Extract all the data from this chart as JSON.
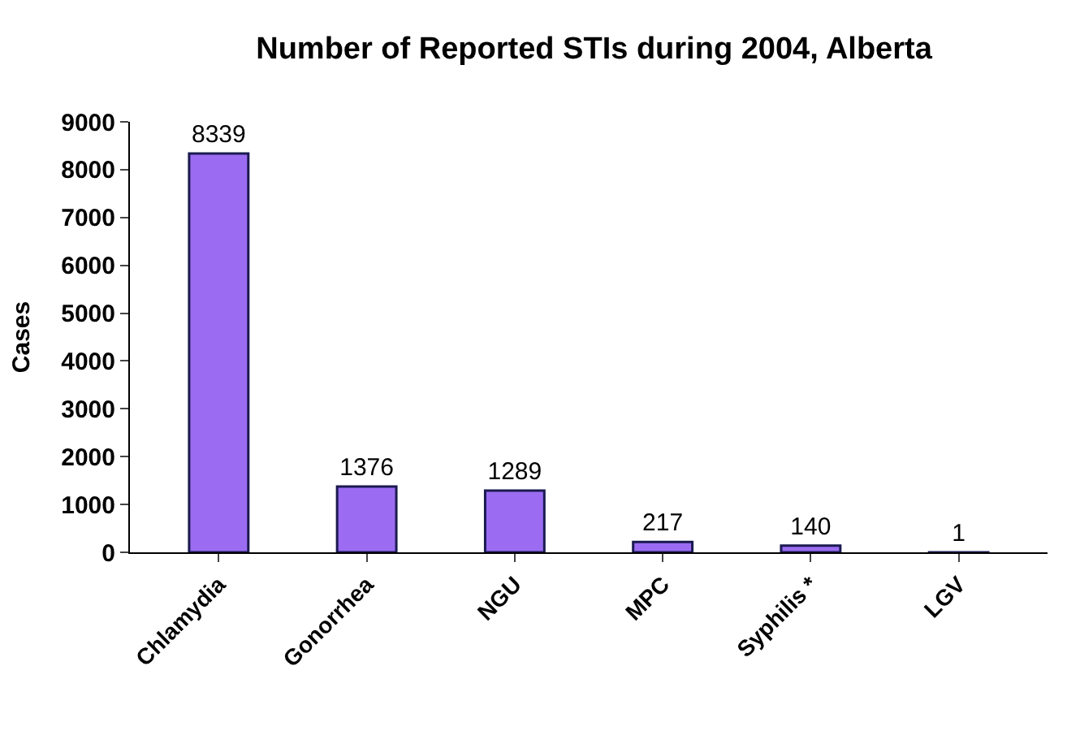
{
  "chart_data": {
    "type": "bar",
    "title": "Number of Reported STIs during 2004, Alberta",
    "ylabel": "Cases",
    "categories": [
      "Chlamydia",
      "Gonorrhea",
      "NGU",
      "MPC",
      "Syphilis *",
      "LGV"
    ],
    "values": [
      8339,
      1376,
      1289,
      217,
      140,
      1
    ],
    "color": "#9b6cf2",
    "ylim": [
      0,
      9000
    ],
    "yticks": [
      0,
      1000,
      2000,
      3000,
      4000,
      5000,
      6000,
      7000,
      8000,
      9000
    ],
    "grid": false,
    "data_labels": true
  }
}
